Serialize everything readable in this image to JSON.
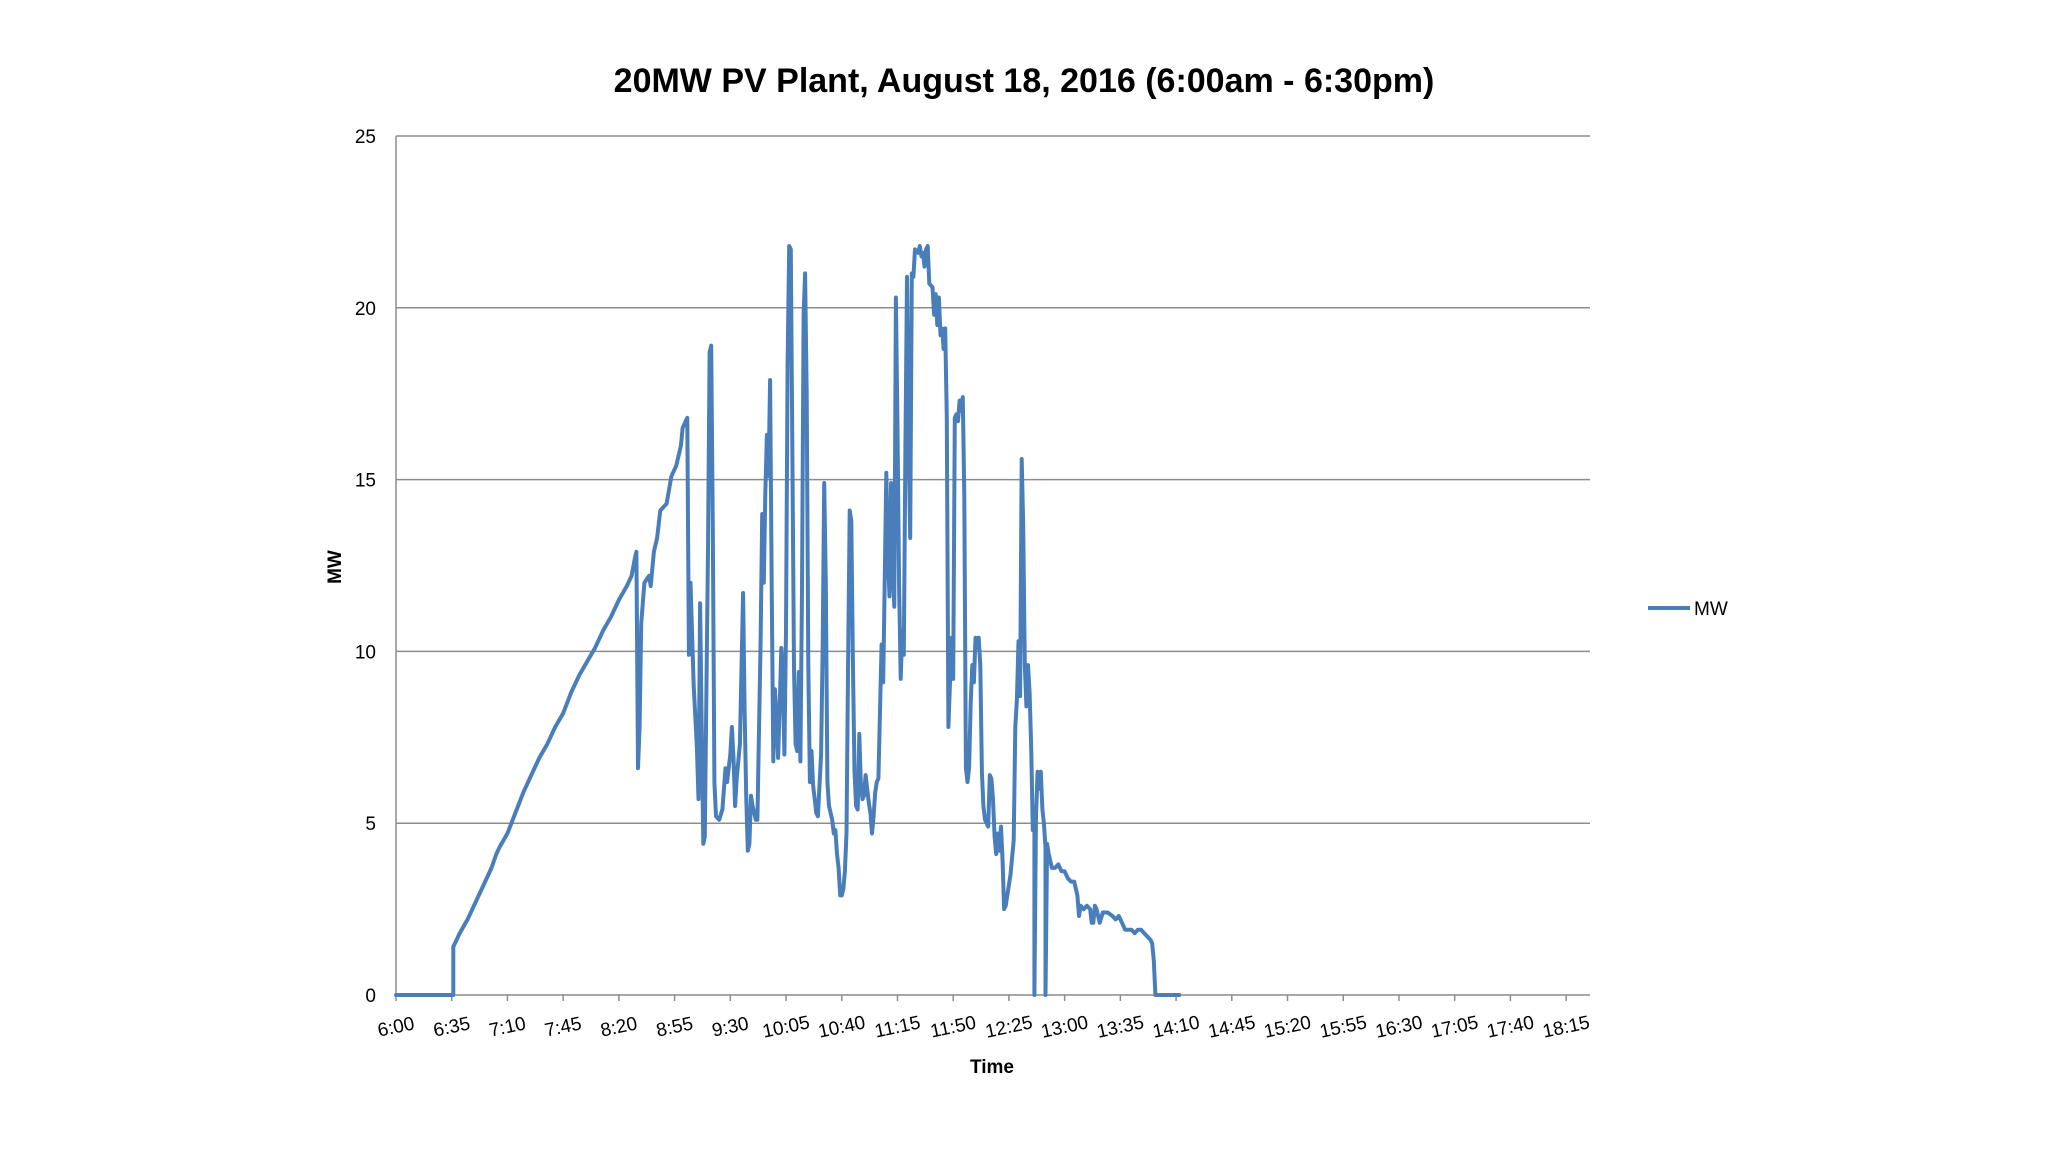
{
  "chart_data": {
    "type": "line",
    "title": "20MW PV Plant, August 18, 2016 (6:00am - 6:30pm)",
    "xlabel": "Time",
    "ylabel": "MW",
    "ylim": [
      0,
      25
    ],
    "yticks": [
      0,
      5,
      10,
      15,
      20,
      25
    ],
    "x_start": "6:00",
    "x_end": "18:30",
    "xticks": [
      "6:00",
      "6:35",
      "7:10",
      "7:45",
      "8:20",
      "8:55",
      "9:30",
      "10:05",
      "10:40",
      "11:15",
      "11:50",
      "12:25",
      "13:00",
      "13:35",
      "14:10",
      "14:45",
      "15:20",
      "15:55",
      "16:30",
      "17:05",
      "17:40",
      "18:15"
    ],
    "grid": true,
    "legend_position": "right",
    "color": "#4a7ebb",
    "series": [
      {
        "name": "MW",
        "points": [
          [
            "6:00",
            0
          ],
          [
            "6:36",
            0
          ],
          [
            "6:36",
            1.4
          ],
          [
            "6:40",
            1.8
          ],
          [
            "6:45",
            2.2
          ],
          [
            "6:50",
            2.7
          ],
          [
            "6:55",
            3.2
          ],
          [
            "7:00",
            3.7
          ],
          [
            "7:03",
            4.1
          ],
          [
            "7:05",
            4.3
          ],
          [
            "7:10",
            4.7
          ],
          [
            "7:15",
            5.3
          ],
          [
            "7:20",
            5.9
          ],
          [
            "7:25",
            6.4
          ],
          [
            "7:30",
            6.9
          ],
          [
            "7:35",
            7.3
          ],
          [
            "7:40",
            7.8
          ],
          [
            "7:45",
            8.2
          ],
          [
            "7:50",
            8.8
          ],
          [
            "7:55",
            9.3
          ],
          [
            "8:00",
            9.7
          ],
          [
            "8:05",
            10.1
          ],
          [
            "8:10",
            10.6
          ],
          [
            "8:15",
            11.0
          ],
          [
            "8:20",
            11.5
          ],
          [
            "8:25",
            11.9
          ],
          [
            "8:28",
            12.2
          ],
          [
            "8:30",
            12.7
          ],
          [
            "8:31",
            12.9
          ],
          [
            "8:32",
            6.6
          ],
          [
            "8:33",
            7.8
          ],
          [
            "8:34",
            10.8
          ],
          [
            "8:36",
            12.0
          ],
          [
            "8:39",
            12.2
          ],
          [
            "8:40",
            11.9
          ],
          [
            "8:42",
            12.9
          ],
          [
            "8:44",
            13.3
          ],
          [
            "8:46",
            14.1
          ],
          [
            "8:50",
            14.3
          ],
          [
            "8:53",
            15.1
          ],
          [
            "8:56",
            15.4
          ],
          [
            "8:59",
            16.0
          ],
          [
            "9:00",
            16.5
          ],
          [
            "9:02",
            16.7
          ],
          [
            "9:03",
            16.8
          ],
          [
            "9:04",
            9.9
          ],
          [
            "9:05",
            12.0
          ],
          [
            "9:06",
            10.5
          ],
          [
            "9:07",
            9.0
          ],
          [
            "9:08",
            8.1
          ],
          [
            "9:09",
            7.2
          ],
          [
            "9:10",
            5.7
          ],
          [
            "9:11",
            11.4
          ],
          [
            "9:12",
            7.8
          ],
          [
            "9:13",
            4.4
          ],
          [
            "9:14",
            4.6
          ],
          [
            "9:16",
            13.0
          ],
          [
            "9:17",
            18.7
          ],
          [
            "9:18",
            18.9
          ],
          [
            "9:19",
            13.6
          ],
          [
            "9:20",
            6.2
          ],
          [
            "9:21",
            5.2
          ],
          [
            "9:23",
            5.1
          ],
          [
            "9:25",
            5.4
          ],
          [
            "9:27",
            6.6
          ],
          [
            "9:28",
            6.2
          ],
          [
            "9:30",
            7.0
          ],
          [
            "9:31",
            7.8
          ],
          [
            "9:32",
            6.9
          ],
          [
            "9:33",
            5.5
          ],
          [
            "9:34",
            6.3
          ],
          [
            "9:36",
            7.3
          ],
          [
            "9:38",
            11.7
          ],
          [
            "9:39",
            8.3
          ],
          [
            "9:40",
            5.8
          ],
          [
            "9:41",
            4.2
          ],
          [
            "9:42",
            4.4
          ],
          [
            "9:43",
            5.8
          ],
          [
            "9:44",
            5.5
          ],
          [
            "9:46",
            5.1
          ],
          [
            "9:47",
            5.1
          ],
          [
            "9:49",
            10.3
          ],
          [
            "9:50",
            14.0
          ],
          [
            "9:51",
            12.0
          ],
          [
            "9:52",
            14.6
          ],
          [
            "9:53",
            16.3
          ],
          [
            "9:54",
            15.1
          ],
          [
            "9:55",
            17.9
          ],
          [
            "9:56",
            11.9
          ],
          [
            "9:57",
            6.8
          ],
          [
            "9:58",
            8.9
          ],
          [
            "9:59",
            8.1
          ],
          [
            "10:00",
            6.9
          ],
          [
            "10:01",
            8.4
          ],
          [
            "10:02",
            10.1
          ],
          [
            "10:03",
            9.2
          ],
          [
            "10:04",
            7.0
          ],
          [
            "10:05",
            10.6
          ],
          [
            "10:06",
            18.4
          ],
          [
            "10:07",
            21.8
          ],
          [
            "10:08",
            21.7
          ],
          [
            "10:09",
            15.7
          ],
          [
            "10:10",
            9.5
          ],
          [
            "10:11",
            7.3
          ],
          [
            "10:12",
            7.1
          ],
          [
            "10:13",
            9.4
          ],
          [
            "10:14",
            6.8
          ],
          [
            "10:15",
            11.8
          ],
          [
            "10:16",
            19.8
          ],
          [
            "10:17",
            21.0
          ],
          [
            "10:18",
            17.5
          ],
          [
            "10:19",
            9.6
          ],
          [
            "10:20",
            6.2
          ],
          [
            "10:21",
            7.1
          ],
          [
            "10:22",
            6.1
          ],
          [
            "10:24",
            5.3
          ],
          [
            "10:25",
            5.2
          ],
          [
            "10:27",
            7.0
          ],
          [
            "10:28",
            10.2
          ],
          [
            "10:29",
            14.9
          ],
          [
            "10:30",
            12.0
          ],
          [
            "10:31",
            6.2
          ],
          [
            "10:32",
            5.5
          ],
          [
            "10:34",
            5.1
          ],
          [
            "10:35",
            4.7
          ],
          [
            "10:36",
            4.8
          ],
          [
            "10:37",
            4.1
          ],
          [
            "10:38",
            3.7
          ],
          [
            "10:39",
            2.9
          ],
          [
            "10:40",
            2.9
          ],
          [
            "10:41",
            3.1
          ],
          [
            "10:42",
            3.6
          ],
          [
            "10:43",
            4.7
          ],
          [
            "10:44",
            9.7
          ],
          [
            "10:45",
            14.1
          ],
          [
            "10:46",
            13.8
          ],
          [
            "10:47",
            9.7
          ],
          [
            "10:48",
            6.5
          ],
          [
            "10:49",
            5.5
          ],
          [
            "10:50",
            5.4
          ],
          [
            "10:51",
            7.6
          ],
          [
            "10:52",
            6.1
          ],
          [
            "10:53",
            5.7
          ],
          [
            "10:54",
            5.8
          ],
          [
            "10:55",
            6.4
          ],
          [
            "10:57",
            5.6
          ],
          [
            "10:58",
            5.3
          ],
          [
            "10:59",
            4.7
          ],
          [
            "11:00",
            5.2
          ],
          [
            "11:01",
            5.9
          ],
          [
            "11:02",
            6.2
          ],
          [
            "11:03",
            6.3
          ],
          [
            "11:05",
            10.2
          ],
          [
            "11:06",
            9.1
          ],
          [
            "11:07",
            12.0
          ],
          [
            "11:08",
            15.2
          ],
          [
            "11:09",
            12.9
          ],
          [
            "11:10",
            11.6
          ],
          [
            "11:11",
            14.9
          ],
          [
            "11:12",
            12.5
          ],
          [
            "11:13",
            11.3
          ],
          [
            "11:14",
            20.3
          ],
          [
            "11:15",
            16.5
          ],
          [
            "11:16",
            11.9
          ],
          [
            "11:17",
            9.2
          ],
          [
            "11:18",
            10.6
          ],
          [
            "11:19",
            9.9
          ],
          [
            "11:20",
            15.9
          ],
          [
            "11:21",
            20.9
          ],
          [
            "11:22",
            16.2
          ],
          [
            "11:23",
            13.3
          ],
          [
            "11:24",
            21.0
          ],
          [
            "11:25",
            20.9
          ],
          [
            "11:26",
            21.7
          ],
          [
            "11:28",
            21.6
          ],
          [
            "11:29",
            21.8
          ],
          [
            "11:30",
            21.5
          ],
          [
            "11:31",
            21.6
          ],
          [
            "11:32",
            21.2
          ],
          [
            "11:33",
            21.7
          ],
          [
            "11:34",
            21.8
          ],
          [
            "11:35",
            20.7
          ],
          [
            "11:37",
            20.6
          ],
          [
            "11:38",
            19.8
          ],
          [
            "11:39",
            20.4
          ],
          [
            "11:40",
            19.5
          ],
          [
            "11:41",
            20.3
          ],
          [
            "11:42",
            19.2
          ],
          [
            "11:43",
            19.4
          ],
          [
            "11:44",
            18.8
          ],
          [
            "11:45",
            19.4
          ],
          [
            "11:46",
            16.8
          ],
          [
            "11:47",
            7.8
          ],
          [
            "11:48",
            9.1
          ],
          [
            "11:49",
            10.4
          ],
          [
            "11:50",
            9.2
          ],
          [
            "11:51",
            16.8
          ],
          [
            "11:52",
            16.9
          ],
          [
            "11:53",
            16.7
          ],
          [
            "11:54",
            17.3
          ],
          [
            "11:55",
            17.0
          ],
          [
            "11:56",
            17.4
          ],
          [
            "11:57",
            14.5
          ],
          [
            "11:58",
            6.6
          ],
          [
            "11:59",
            6.2
          ],
          [
            "12:00",
            6.6
          ],
          [
            "12:01",
            8.5
          ],
          [
            "12:02",
            9.6
          ],
          [
            "12:03",
            9.1
          ],
          [
            "12:04",
            10.4
          ],
          [
            "12:05",
            10.1
          ],
          [
            "12:06",
            10.4
          ],
          [
            "12:07",
            9.6
          ],
          [
            "12:08",
            6.5
          ],
          [
            "12:09",
            5.5
          ],
          [
            "12:10",
            5.1
          ],
          [
            "12:12",
            4.9
          ],
          [
            "12:13",
            6.4
          ],
          [
            "12:14",
            6.3
          ],
          [
            "12:15",
            5.7
          ],
          [
            "12:16",
            4.6
          ],
          [
            "12:17",
            4.1
          ],
          [
            "12:18",
            4.7
          ],
          [
            "12:19",
            4.2
          ],
          [
            "12:20",
            4.9
          ],
          [
            "12:21",
            3.9
          ],
          [
            "12:22",
            2.5
          ],
          [
            "12:23",
            2.6
          ],
          [
            "12:24",
            2.9
          ],
          [
            "12:25",
            3.2
          ],
          [
            "12:26",
            3.5
          ],
          [
            "12:27",
            4.0
          ],
          [
            "12:28",
            4.5
          ],
          [
            "12:29",
            7.8
          ],
          [
            "12:30",
            8.6
          ],
          [
            "12:31",
            10.3
          ],
          [
            "12:32",
            8.7
          ],
          [
            "12:33",
            15.6
          ],
          [
            "12:34",
            13.7
          ],
          [
            "12:35",
            9.6
          ],
          [
            "12:36",
            8.4
          ],
          [
            "12:37",
            9.6
          ],
          [
            "12:38",
            8.8
          ],
          [
            "12:39",
            7.2
          ],
          [
            "12:40",
            4.8
          ],
          [
            "12:41",
            5.0
          ],
          [
            "12:41",
            0
          ],
          [
            "12:42",
            5.2
          ],
          [
            "12:43",
            6.5
          ],
          [
            "12:44",
            6.0
          ],
          [
            "12:45",
            6.5
          ],
          [
            "12:46",
            5.4
          ],
          [
            "12:47",
            5.0
          ],
          [
            "12:48",
            4.3
          ],
          [
            "12:48",
            0
          ],
          [
            "12:49",
            4.4
          ],
          [
            "12:50",
            4.1
          ],
          [
            "12:52",
            3.7
          ],
          [
            "12:54",
            3.7
          ],
          [
            "12:56",
            3.8
          ],
          [
            "12:58",
            3.6
          ],
          [
            "13:00",
            3.6
          ],
          [
            "13:02",
            3.4
          ],
          [
            "13:04",
            3.3
          ],
          [
            "13:06",
            3.3
          ],
          [
            "13:08",
            2.9
          ],
          [
            "13:09",
            2.3
          ],
          [
            "13:10",
            2.6
          ],
          [
            "13:12",
            2.5
          ],
          [
            "13:14",
            2.6
          ],
          [
            "13:16",
            2.5
          ],
          [
            "13:17",
            2.1
          ],
          [
            "13:18",
            2.1
          ],
          [
            "13:19",
            2.6
          ],
          [
            "13:20",
            2.5
          ],
          [
            "13:22",
            2.1
          ],
          [
            "13:24",
            2.4
          ],
          [
            "13:27",
            2.4
          ],
          [
            "13:30",
            2.3
          ],
          [
            "13:32",
            2.2
          ],
          [
            "13:34",
            2.3
          ],
          [
            "13:36",
            2.1
          ],
          [
            "13:38",
            1.9
          ],
          [
            "13:40",
            1.9
          ],
          [
            "13:42",
            1.9
          ],
          [
            "13:44",
            1.8
          ],
          [
            "13:46",
            1.9
          ],
          [
            "13:48",
            1.9
          ],
          [
            "13:50",
            1.8
          ],
          [
            "13:52",
            1.7
          ],
          [
            "13:54",
            1.6
          ],
          [
            "13:55",
            1.5
          ],
          [
            "13:56",
            1.0
          ],
          [
            "13:57",
            0
          ],
          [
            "14:12",
            0
          ]
        ]
      }
    ]
  }
}
